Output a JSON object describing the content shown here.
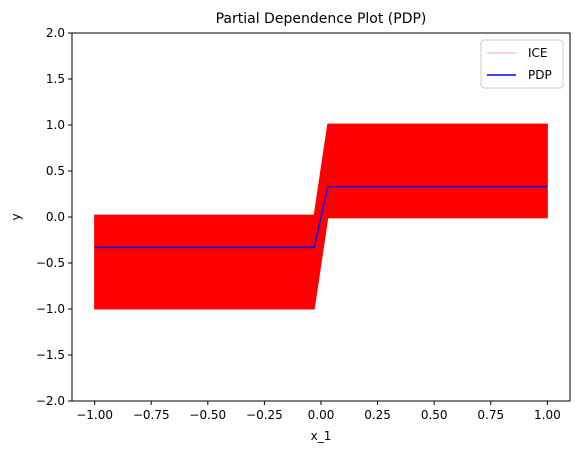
{
  "chart_data": {
    "type": "line",
    "title": "Partial Dependence Plot (PDP)",
    "xlabel": "x_1",
    "ylabel": "y",
    "xlim": [
      -1.1,
      1.1
    ],
    "ylim": [
      -2.0,
      2.0
    ],
    "x_ticks": [
      -1.0,
      -0.75,
      -0.5,
      -0.25,
      0.0,
      0.25,
      0.5,
      0.75,
      1.0
    ],
    "x_tick_labels": [
      "−1.00",
      "−0.75",
      "−0.50",
      "−0.25",
      "0.00",
      "0.25",
      "0.50",
      "0.75",
      "1.00"
    ],
    "y_ticks": [
      -2.0,
      -1.5,
      -1.0,
      -0.5,
      0.0,
      0.5,
      1.0,
      1.5,
      2.0
    ],
    "y_tick_labels": [
      "−2.0",
      "−1.5",
      "−1.0",
      "−0.5",
      "0.0",
      "0.5",
      "1.0",
      "1.5",
      "2.0"
    ],
    "grid": false,
    "legend_position": "top-right",
    "series": [
      {
        "name": "ICE",
        "color": "#ff0000",
        "kind": "band",
        "x": [
          -1.0,
          -0.03,
          0.03,
          1.0
        ],
        "upper": [
          0.02,
          0.02,
          1.01,
          1.01
        ],
        "lower": [
          -1.0,
          -1.0,
          -0.01,
          -0.01
        ]
      },
      {
        "name": "PDP",
        "color": "#0000ff",
        "kind": "line",
        "x": [
          -1.0,
          -0.03,
          0.03,
          1.0
        ],
        "y": [
          -0.33,
          -0.33,
          0.33,
          0.33
        ]
      }
    ],
    "legend": {
      "ice_label": "ICE",
      "pdp_label": "PDP",
      "ice_swatch_color": "#ffc0cb",
      "pdp_swatch_color": "#0000ff"
    }
  }
}
